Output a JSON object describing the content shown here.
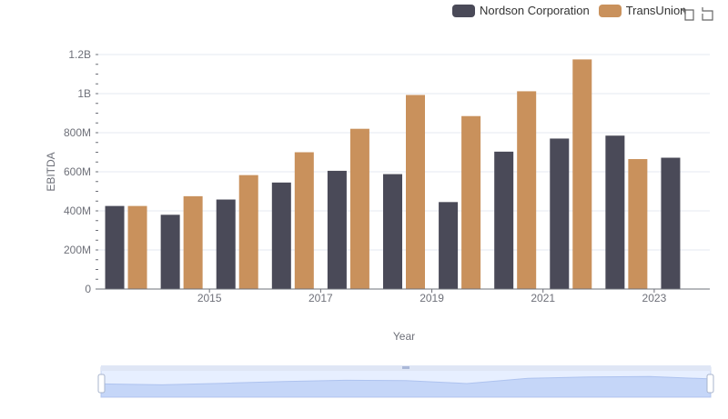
{
  "legend": [
    {
      "name": "Nordson Corporation",
      "color": "#4a4a58"
    },
    {
      "name": "TransUnion",
      "color": "#c9915c"
    }
  ],
  "toolbar": {
    "zoom_icon": "zoom-icon",
    "restore_icon": "restore-icon"
  },
  "chart_data": {
    "type": "bar",
    "xlabel": "Year",
    "ylabel": "EBITDA",
    "categories": [
      "2014",
      "2015",
      "2016",
      "2017",
      "2018",
      "2019",
      "2020",
      "2021",
      "2022",
      "2023",
      "2024"
    ],
    "x_tick_labels": [
      "2015",
      "2017",
      "2019",
      "2021",
      "2023"
    ],
    "y_tick_labels": [
      "0",
      "200M",
      "400M",
      "600M",
      "800M",
      "1B",
      "1.2B"
    ],
    "y_ticks": [
      0,
      200000000,
      400000000,
      600000000,
      800000000,
      1000000000,
      1200000000
    ],
    "ylim": [
      0,
      1200000000
    ],
    "grid": true,
    "legend_position": "top-right",
    "series": [
      {
        "name": "Nordson Corporation",
        "color": "#4a4a58",
        "values": [
          425000000,
          380000000,
          458000000,
          545000000,
          605000000,
          588000000,
          445000000,
          703000000,
          770000000,
          785000000,
          672000000
        ]
      },
      {
        "name": "TransUnion",
        "color": "#c9915c",
        "values": [
          425000000,
          475000000,
          583000000,
          700000000,
          820000000,
          993000000,
          885000000,
          1012000000,
          1175000000,
          665000000,
          null
        ]
      }
    ]
  }
}
